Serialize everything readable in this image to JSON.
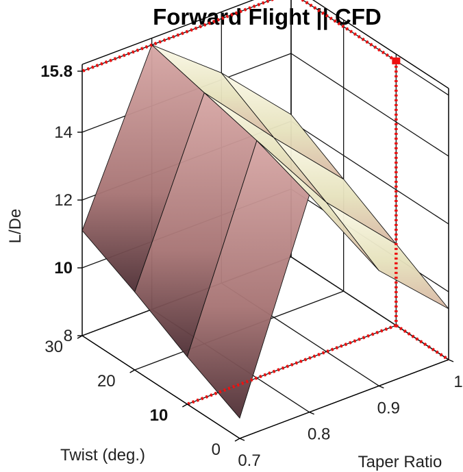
{
  "chart_data": {
    "type": "surface",
    "title": "Forward Flight || CFD",
    "xlabel": "Taper Ratio",
    "ylabel": "Twist (deg.)",
    "zlabel": "L/De",
    "x_ticks": [
      "0.7",
      "0.8",
      "0.9",
      "1"
    ],
    "y_ticks": [
      "0",
      "10",
      "20",
      "30"
    ],
    "z_ticks": [
      "8",
      "10",
      "12",
      "14",
      "15.8"
    ],
    "bold_ticks": [
      "10",
      "15.8"
    ],
    "xlim": [
      0.7,
      1.0
    ],
    "ylim": [
      0,
      30
    ],
    "zlim": [
      8,
      16
    ],
    "x": [
      0.7,
      0.8,
      0.9,
      1.0
    ],
    "y": [
      0,
      10,
      20,
      30
    ],
    "z": [
      [
        8.6,
        14.4,
        11.4,
        9.5
      ],
      [
        9.4,
        15.0,
        12.4,
        10.4
      ],
      [
        10.3,
        15.4,
        13.3,
        11.3
      ],
      [
        11.1,
        15.8,
        14.2,
        12.2
      ]
    ],
    "max_marker": {
      "x": 1.0,
      "y": 10,
      "z": 15.8
    },
    "grid": true,
    "box": true
  }
}
